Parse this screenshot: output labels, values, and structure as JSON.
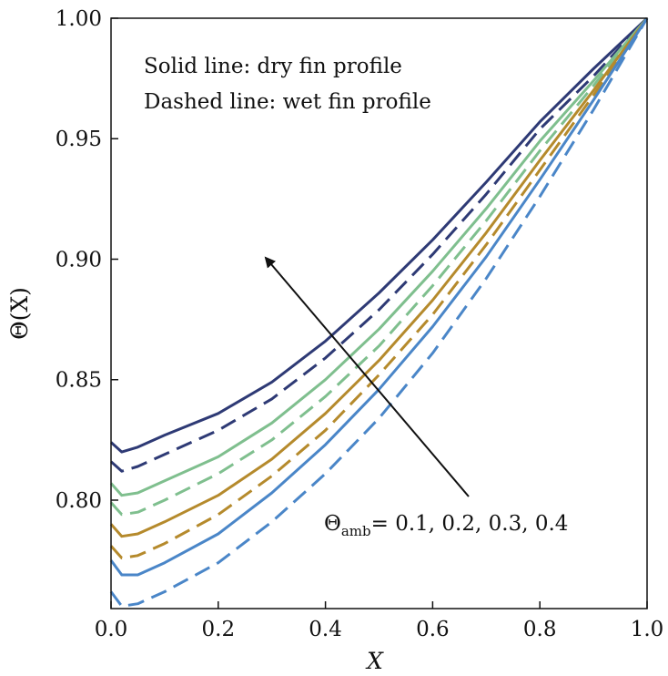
{
  "chart_data": {
    "type": "line",
    "xlabel": "X",
    "ylabel": "Θ(X)",
    "xlim": [
      0.0,
      1.0
    ],
    "ylim": [
      0.755,
      1.0
    ],
    "xticks": [
      "0.0",
      "0.2",
      "0.4",
      "0.6",
      "0.8",
      "1.0"
    ],
    "yticks": [
      "0.80",
      "0.85",
      "0.90",
      "0.95",
      "1.00"
    ],
    "grid": false,
    "annotations": {
      "line1": "Solid line: dry fin profile",
      "line2": "Dashed line: wet fin profile",
      "arrow_label_main": "Θ",
      "arrow_label_sub": "amb",
      "arrow_label_values": "= 0.1, 0.2, 0.3, 0.4"
    },
    "x": [
      0.0,
      0.02,
      0.05,
      0.1,
      0.2,
      0.3,
      0.4,
      0.5,
      0.6,
      0.7,
      0.8,
      0.9,
      1.0
    ],
    "series": [
      {
        "style": "solid",
        "color": "#2e3a75",
        "values": [
          0.824,
          0.82,
          0.822,
          0.827,
          0.836,
          0.849,
          0.866,
          0.886,
          0.908,
          0.932,
          0.957,
          0.979,
          1.0
        ]
      },
      {
        "style": "dashed",
        "color": "#2e3a75",
        "values": [
          0.816,
          0.812,
          0.814,
          0.819,
          0.829,
          0.842,
          0.859,
          0.879,
          0.902,
          0.927,
          0.954,
          0.976,
          1.0
        ]
      },
      {
        "style": "solid",
        "color": "#7fbf8e",
        "values": [
          0.807,
          0.802,
          0.803,
          0.808,
          0.818,
          0.832,
          0.85,
          0.871,
          0.895,
          0.921,
          0.949,
          0.974,
          1.0
        ]
      },
      {
        "style": "dashed",
        "color": "#7fbf8e",
        "values": [
          0.799,
          0.794,
          0.795,
          0.8,
          0.811,
          0.825,
          0.843,
          0.864,
          0.889,
          0.916,
          0.945,
          0.972,
          1.0
        ]
      },
      {
        "style": "solid",
        "color": "#b58a2c",
        "values": [
          0.79,
          0.785,
          0.786,
          0.791,
          0.802,
          0.817,
          0.836,
          0.858,
          0.883,
          0.911,
          0.941,
          0.97,
          1.0
        ]
      },
      {
        "style": "dashed",
        "color": "#b58a2c",
        "values": [
          0.781,
          0.776,
          0.777,
          0.782,
          0.794,
          0.81,
          0.829,
          0.852,
          0.877,
          0.906,
          0.937,
          0.968,
          1.0
        ]
      },
      {
        "style": "solid",
        "color": "#4a86c8",
        "values": [
          0.775,
          0.769,
          0.769,
          0.774,
          0.786,
          0.803,
          0.823,
          0.846,
          0.872,
          0.901,
          0.933,
          0.966,
          1.0
        ]
      },
      {
        "style": "dashed",
        "color": "#4a86c8",
        "values": [
          0.762,
          0.756,
          0.757,
          0.762,
          0.774,
          0.791,
          0.811,
          0.834,
          0.861,
          0.892,
          0.926,
          0.962,
          1.0
        ]
      }
    ]
  }
}
